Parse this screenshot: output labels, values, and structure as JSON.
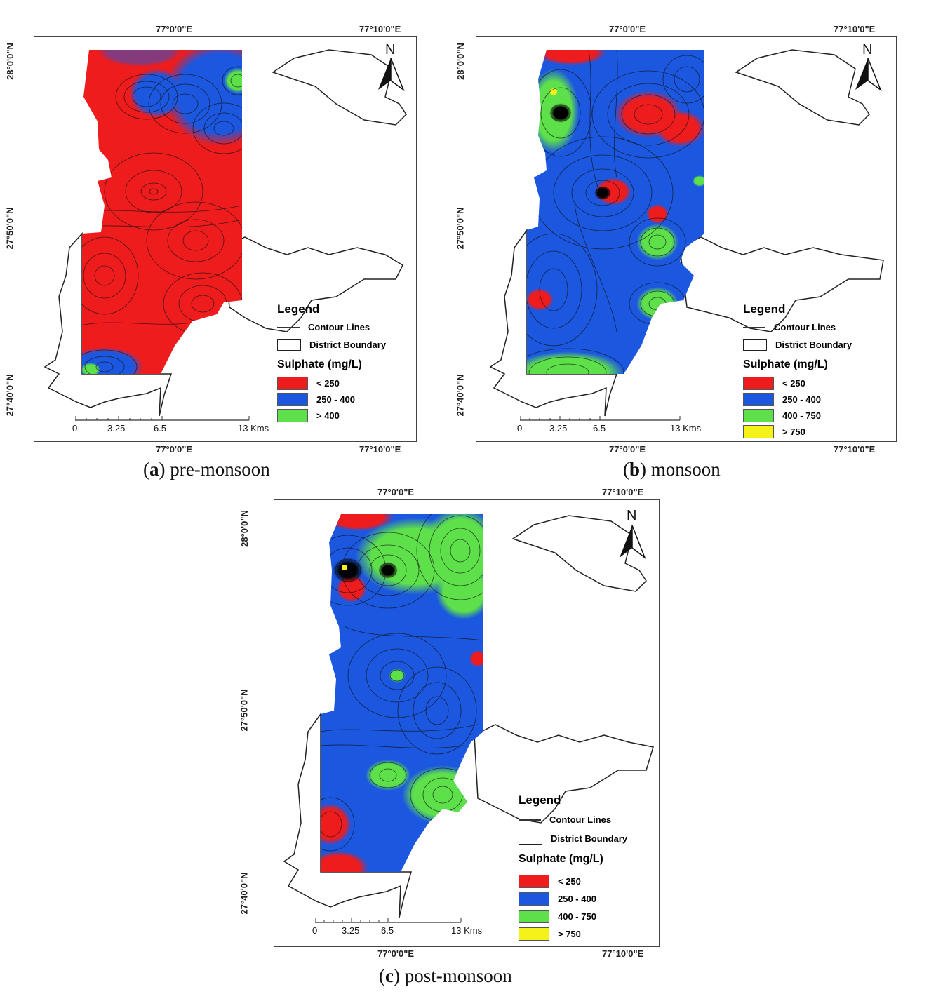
{
  "coords": {
    "lon_left": "77°0'0\"E",
    "lon_right": "77°10'0\"E",
    "lat_28_00": "28°0'0\"N",
    "lat_27_50": "27°50'0\"N",
    "lat_27_40": "27°40'0\"N"
  },
  "north_label": "N",
  "legend_title": "Legend",
  "legend_contour": "Contour Lines",
  "legend_boundary": "District Boundary",
  "legend_param": "Sulphate (mg/L)",
  "scale": {
    "t0": "0",
    "t1": "3.25",
    "t2": "6.5",
    "t3": "13 Kms"
  },
  "colors": {
    "red": "#ee1c1c",
    "blue": "#1c57e0",
    "green": "#5ee04a",
    "yellow": "#f5f21a"
  },
  "panels": [
    {
      "caption_letter": "a",
      "caption_text": "pre-monsoon",
      "classes": [
        {
          "label": "< 250",
          "color": "#ee1c1c"
        },
        {
          "label": "250 - 400",
          "color": "#1c57e0"
        },
        {
          "label": "> 400",
          "color": "#5ee04a"
        }
      ]
    },
    {
      "caption_letter": "b",
      "caption_text": "monsoon",
      "classes": [
        {
          "label": "< 250",
          "color": "#ee1c1c"
        },
        {
          "label": "250 - 400",
          "color": "#1c57e0"
        },
        {
          "label": "400 - 750",
          "color": "#5ee04a"
        },
        {
          "label": "> 750",
          "color": "#f5f21a"
        }
      ]
    },
    {
      "caption_letter": "c",
      "caption_text": "post-monsoon",
      "classes": [
        {
          "label": "< 250",
          "color": "#ee1c1c"
        },
        {
          "label": "250 - 400",
          "color": "#1c57e0"
        },
        {
          "label": "400 - 750",
          "color": "#5ee04a"
        },
        {
          "label": "> 750",
          "color": "#f5f21a"
        }
      ]
    }
  ]
}
